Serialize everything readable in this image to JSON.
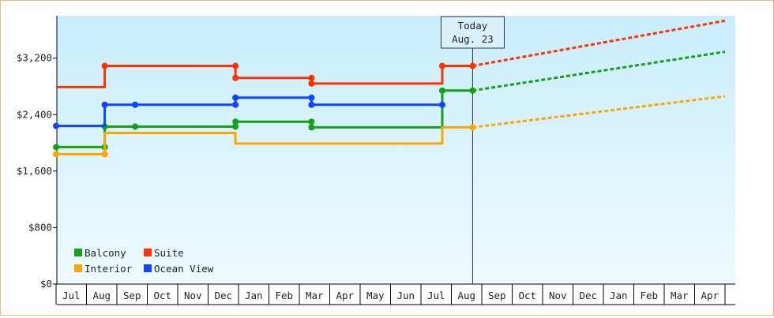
{
  "chart_data": {
    "type": "line",
    "title": "",
    "xlabel": "",
    "ylabel": "",
    "ylim": [
      0,
      3800
    ],
    "y_ticks": [
      0,
      800,
      1600,
      2400,
      3200
    ],
    "y_tick_labels": [
      "$0",
      "$800",
      "$1,600",
      "$2,400",
      "$3,200"
    ],
    "x_tick_labels": [
      "Jul",
      "Aug",
      "Sep",
      "Oct",
      "Nov",
      "Dec",
      "Jan",
      "Feb",
      "Mar",
      "Apr",
      "May",
      "Jun",
      "Jul",
      "Aug",
      "Sep",
      "Oct",
      "Nov",
      "Dec",
      "Jan",
      "Feb",
      "Mar",
      "Apr"
    ],
    "today_marker": {
      "line1": "Today",
      "line2": "Aug. 23",
      "month_index": 13.7
    },
    "legend_position": "bottom-left",
    "grid": false,
    "series": [
      {
        "name": "Balcony",
        "color": "#16a016",
        "history": [
          [
            0,
            1940
          ],
          [
            1.6,
            1940
          ],
          [
            1.6,
            2230
          ],
          [
            2.6,
            2230
          ],
          [
            5.9,
            2230
          ],
          [
            5.9,
            2300
          ],
          [
            8.4,
            2300
          ],
          [
            8.4,
            2220
          ],
          [
            12.7,
            2220
          ],
          [
            12.7,
            2740
          ],
          [
            13.7,
            2740
          ]
        ],
        "points": [
          [
            0,
            1940
          ],
          [
            1.6,
            1940
          ],
          [
            1.6,
            2230
          ],
          [
            2.6,
            2230
          ],
          [
            5.9,
            2230
          ],
          [
            5.9,
            2300
          ],
          [
            8.4,
            2300
          ],
          [
            8.4,
            2220
          ],
          [
            12.7,
            2740
          ],
          [
            13.7,
            2740
          ]
        ],
        "forecast": [
          [
            13.7,
            2740
          ],
          [
            22,
            3290
          ]
        ]
      },
      {
        "name": "Suite",
        "color": "#ff3300",
        "history": [
          [
            0,
            2790
          ],
          [
            1.6,
            2790
          ],
          [
            1.6,
            3090
          ],
          [
            5.9,
            3090
          ],
          [
            5.9,
            2920
          ],
          [
            8.4,
            2920
          ],
          [
            8.4,
            2840
          ],
          [
            12.7,
            2840
          ],
          [
            12.7,
            3090
          ],
          [
            13.7,
            3090
          ]
        ],
        "points": [
          [
            1.6,
            3090
          ],
          [
            5.9,
            3090
          ],
          [
            5.9,
            2920
          ],
          [
            8.4,
            2920
          ],
          [
            8.4,
            2840
          ],
          [
            12.7,
            3090
          ],
          [
            13.7,
            3090
          ]
        ],
        "forecast": [
          [
            13.7,
            3090
          ],
          [
            22,
            3730
          ]
        ]
      },
      {
        "name": "Interior",
        "color": "#ffa500",
        "history": [
          [
            0,
            1840
          ],
          [
            1.6,
            1840
          ],
          [
            1.6,
            2140
          ],
          [
            5.9,
            2140
          ],
          [
            5.9,
            1990
          ],
          [
            12.7,
            1990
          ],
          [
            12.7,
            2220
          ],
          [
            13.7,
            2220
          ]
        ],
        "points": [
          [
            0,
            1840
          ],
          [
            1.6,
            1840
          ],
          [
            13.7,
            2220
          ]
        ],
        "forecast": [
          [
            13.7,
            2220
          ],
          [
            22,
            2660
          ]
        ]
      },
      {
        "name": "Ocean View",
        "color": "#1144ff",
        "history": [
          [
            0,
            2240
          ],
          [
            1.6,
            2240
          ],
          [
            1.6,
            2540
          ],
          [
            5.9,
            2540
          ],
          [
            5.9,
            2640
          ],
          [
            8.4,
            2640
          ],
          [
            8.4,
            2540
          ],
          [
            12.7,
            2540
          ]
        ],
        "points": [
          [
            0,
            2240
          ],
          [
            1.6,
            2540
          ],
          [
            2.6,
            2540
          ],
          [
            5.9,
            2540
          ],
          [
            5.9,
            2640
          ],
          [
            8.4,
            2640
          ],
          [
            8.4,
            2540
          ],
          [
            12.7,
            2540
          ]
        ],
        "forecast": []
      }
    ]
  }
}
